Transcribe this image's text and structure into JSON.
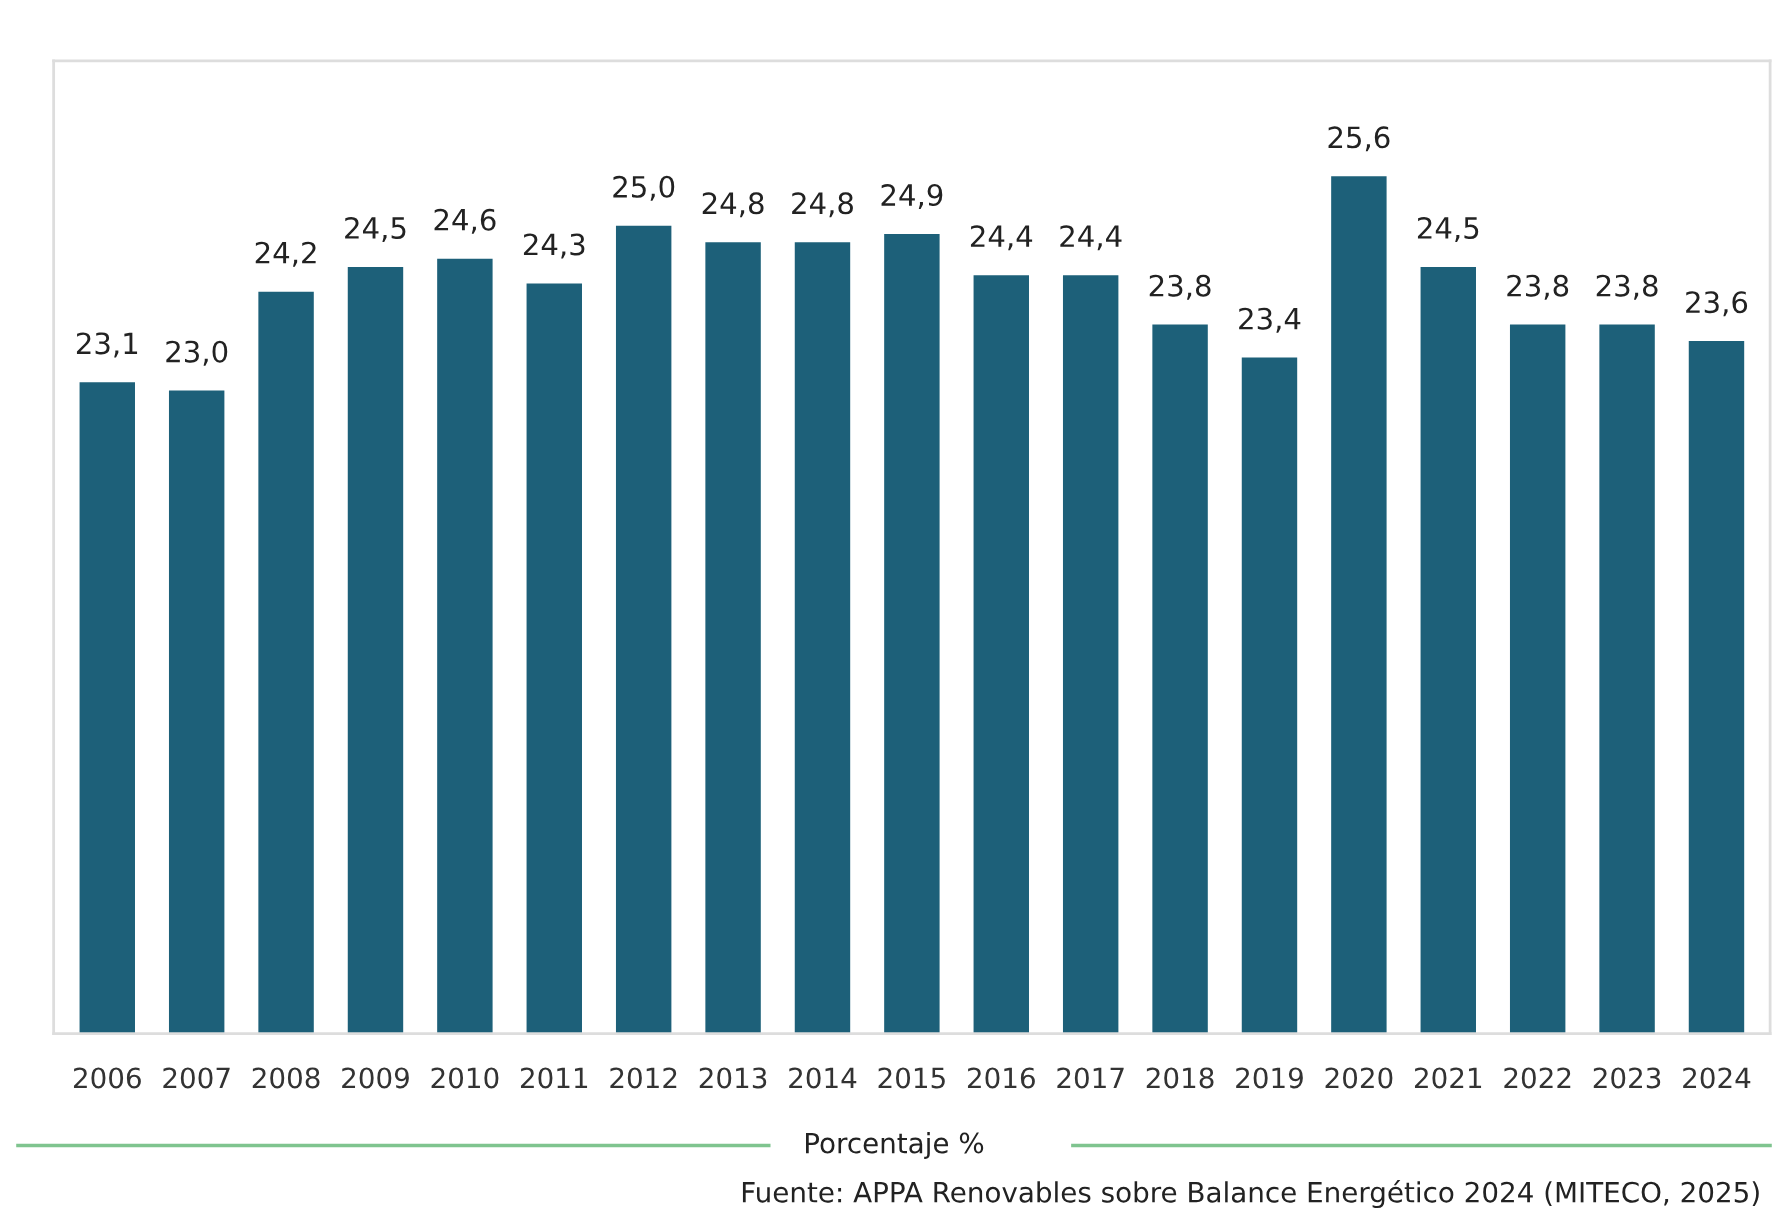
{
  "chart_data": {
    "type": "bar",
    "categories": [
      "2006",
      "2007",
      "2008",
      "2009",
      "2010",
      "2011",
      "2012",
      "2013",
      "2014",
      "2015",
      "2016",
      "2017",
      "2018",
      "2019",
      "2020",
      "2021",
      "2022",
      "2023",
      "2024"
    ],
    "values": [
      23.1,
      23.0,
      24.2,
      24.5,
      24.6,
      24.3,
      25.0,
      24.8,
      24.8,
      24.9,
      24.4,
      24.4,
      23.8,
      23.4,
      25.6,
      24.5,
      23.8,
      23.8,
      23.6
    ],
    "value_labels": [
      "23,1",
      "23,0",
      "24,2",
      "24,5",
      "24,6",
      "24,3",
      "25,0",
      "24,8",
      "24,8",
      "24,9",
      "24,4",
      "24,4",
      "23,8",
      "23,4",
      "25,6",
      "24,5",
      "23,8",
      "23,8",
      "23,6"
    ],
    "color": "#1d6079",
    "ylim": [
      15.2,
      27
    ],
    "tick_labels": "x",
    "grid": false,
    "legend": false,
    "xlabel": "Porcentaje %",
    "annotations": [
      "Fuente: APPA Renovables sobre Balance Energético 2024 (MITECO, 2025)"
    ]
  }
}
